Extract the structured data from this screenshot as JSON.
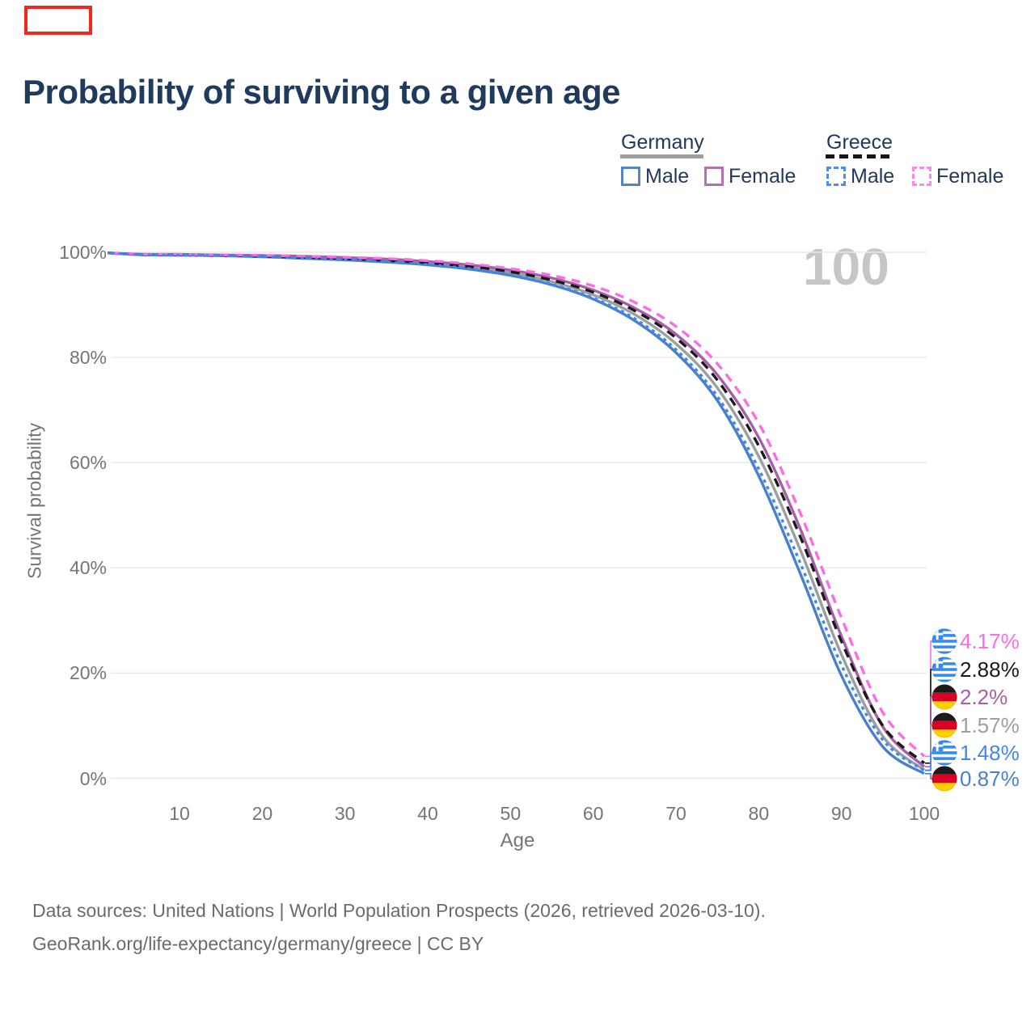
{
  "annotation_box": {
    "color": "#f2281c"
  },
  "header": {
    "title": "Probability of surviving to a given age"
  },
  "legend": {
    "groups": [
      {
        "label": "Germany",
        "line_style": "solid",
        "line_color": "#9e9e9e",
        "items": [
          {
            "label": "Male",
            "color": "#5586c1"
          },
          {
            "label": "Female",
            "color": "#b272ae"
          }
        ]
      },
      {
        "label": "Greece",
        "line_style": "dashed",
        "line_color": "#1a1a1a",
        "items": [
          {
            "label": "Male",
            "color": "#4c8cf5"
          },
          {
            "label": "Female",
            "color": "#fb87e7"
          }
        ]
      }
    ]
  },
  "watermark": "100",
  "axes": {
    "x_label": "Age",
    "y_label": "Survival probability",
    "y_tick_labels": [
      "100%",
      "80%",
      "60%",
      "40%",
      "20%",
      "0%"
    ],
    "x_tick_labels": [
      "10",
      "20",
      "30",
      "40",
      "50",
      "60",
      "70",
      "80",
      "90",
      "100"
    ]
  },
  "chart_data": {
    "type": "line",
    "title": "Probability of surviving to a given age",
    "xlabel": "Age",
    "ylabel": "Survival probability",
    "xlim": [
      0,
      100
    ],
    "ylim": [
      0,
      100
    ],
    "grid": "horizontal",
    "legend_position": "top-right",
    "x": [
      0,
      5,
      10,
      15,
      20,
      25,
      30,
      35,
      40,
      45,
      50,
      55,
      60,
      65,
      70,
      75,
      80,
      85,
      90,
      95,
      100
    ],
    "series": [
      {
        "name": "Germany",
        "country": "Germany",
        "sex": "Both",
        "color": "#9e9e9e",
        "dash": "",
        "end_label": "1.57%",
        "values": [
          100,
          99.6,
          99.5,
          99.4,
          99.25,
          99.0,
          98.75,
          98.4,
          97.9,
          97.2,
          96.1,
          94.4,
          91.9,
          88.2,
          82.6,
          74.2,
          61.2,
          43.5,
          23.5,
          8.0,
          1.57
        ]
      },
      {
        "name": "Germany Female",
        "country": "Germany",
        "sex": "Female",
        "color": "#a85fa8",
        "dash": "",
        "end_label": "2.2%",
        "values": [
          100,
          99.65,
          99.6,
          99.5,
          99.4,
          99.25,
          99.0,
          98.7,
          98.25,
          97.6,
          96.6,
          95.1,
          92.8,
          89.4,
          84.4,
          76.7,
          64.8,
          47.5,
          27.0,
          9.8,
          2.2
        ]
      },
      {
        "name": "Germany Male",
        "country": "Germany",
        "sex": "Male",
        "color": "#4a80c9",
        "dash": "",
        "end_label": "0.87%",
        "values": [
          100,
          99.55,
          99.45,
          99.35,
          99.15,
          98.85,
          98.55,
          98.15,
          97.6,
          96.8,
          95.6,
          93.8,
          91.1,
          87.0,
          80.9,
          71.8,
          57.5,
          39.0,
          19.5,
          6.0,
          0.87
        ]
      },
      {
        "name": "Greece",
        "country": "Greece",
        "sex": "Both",
        "color": "#1a1a1a",
        "dash": "11 8",
        "end_label": "2.88%",
        "values": [
          100,
          99.6,
          99.5,
          99.4,
          99.25,
          99.05,
          98.8,
          98.45,
          98.0,
          97.3,
          96.3,
          94.7,
          92.4,
          88.9,
          83.7,
          75.7,
          63.2,
          46.0,
          26.0,
          10.0,
          2.88
        ]
      },
      {
        "name": "Greece Female",
        "country": "Greece",
        "sex": "Female",
        "color": "#fb6ce6",
        "dash": "11 8",
        "end_label": "4.17%",
        "values": [
          100,
          99.65,
          99.6,
          99.5,
          99.4,
          99.25,
          99.05,
          98.8,
          98.4,
          97.8,
          96.9,
          95.6,
          93.6,
          90.5,
          85.9,
          78.8,
          67.5,
          50.5,
          30.5,
          12.5,
          4.17
        ]
      },
      {
        "name": "Greece Male",
        "country": "Greece",
        "sex": "Male",
        "color": "#3f86f8",
        "dash": "4 5",
        "end_label": "1.48%",
        "values": [
          100,
          99.55,
          99.45,
          99.35,
          99.15,
          98.85,
          98.55,
          98.15,
          97.65,
          96.9,
          95.7,
          93.9,
          91.3,
          87.4,
          81.5,
          72.6,
          58.8,
          41.0,
          21.5,
          7.3,
          1.48
        ]
      }
    ]
  },
  "end_labels": [
    {
      "text": "4.17%",
      "value": 4.17,
      "color": "#fb6ce6",
      "flag": "greece-flag-icon"
    },
    {
      "text": "2.88%",
      "value": 2.88,
      "color": "#1a1a1a",
      "flag": "greece-flag-icon"
    },
    {
      "text": "2.2%",
      "value": 2.2,
      "color": "#a85fa8",
      "flag": "germany-flag-icon"
    },
    {
      "text": "1.57%",
      "value": 1.57,
      "color": "#9e9e9e",
      "flag": "germany-flag-icon"
    },
    {
      "text": "1.48%",
      "value": 1.48,
      "color": "#3f86f8",
      "flag": "greece-flag-icon"
    },
    {
      "text": "0.87%",
      "value": 0.87,
      "color": "#4a80c9",
      "flag": "germany-flag-icon"
    }
  ],
  "footer": {
    "line1": "Data sources: United Nations | World Population Prospects (2026, retrieved 2026-03-10).",
    "line2": "GeoRank.org/life-expectancy/germany/greece | CC BY"
  }
}
